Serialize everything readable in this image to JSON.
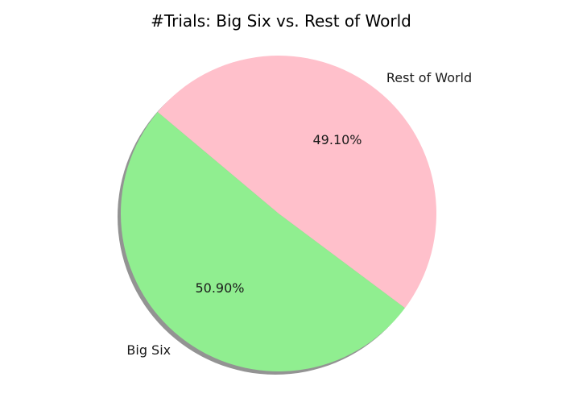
{
  "chart_data": {
    "type": "pie",
    "title": "#Trials: Big Six vs. Rest of World",
    "slices": [
      {
        "label": "Big Six",
        "value": 50.9,
        "pct_label": "50.90%",
        "color": "#90ee90"
      },
      {
        "label": "Rest of World",
        "value": 49.1,
        "pct_label": "49.10%",
        "color": "#ffc0cb"
      }
    ],
    "start_angle_deg": 140,
    "shadow": true,
    "legend": "none"
  }
}
